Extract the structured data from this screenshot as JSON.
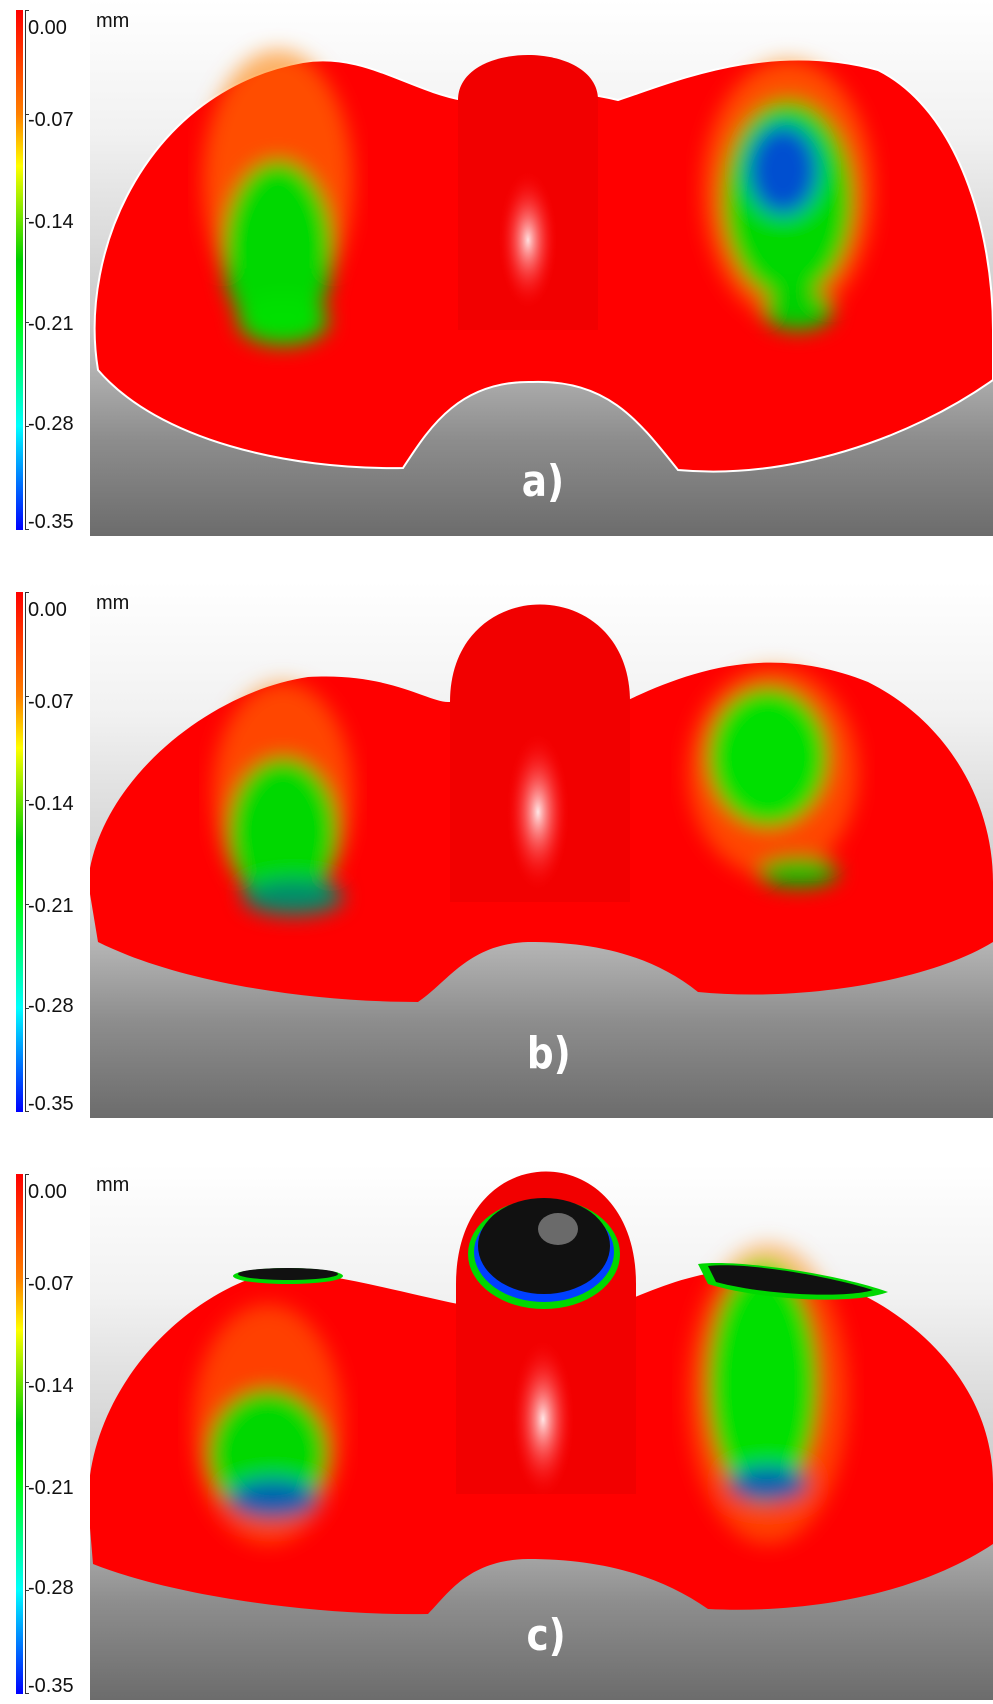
{
  "colors": {
    "deviation_max": "#ff0000",
    "deviation_mid": "#00ff00",
    "deviation_min": "#0000ff",
    "out_of_range": "#000000"
  },
  "scale": {
    "unit": "mm",
    "ticks": [
      "0.00",
      "-0.07",
      "-0.14",
      "-0.21",
      "-0.28",
      "-0.35"
    ]
  },
  "panels": [
    {
      "label": "a)"
    },
    {
      "label": "b)"
    },
    {
      "label": "c)"
    }
  ]
}
